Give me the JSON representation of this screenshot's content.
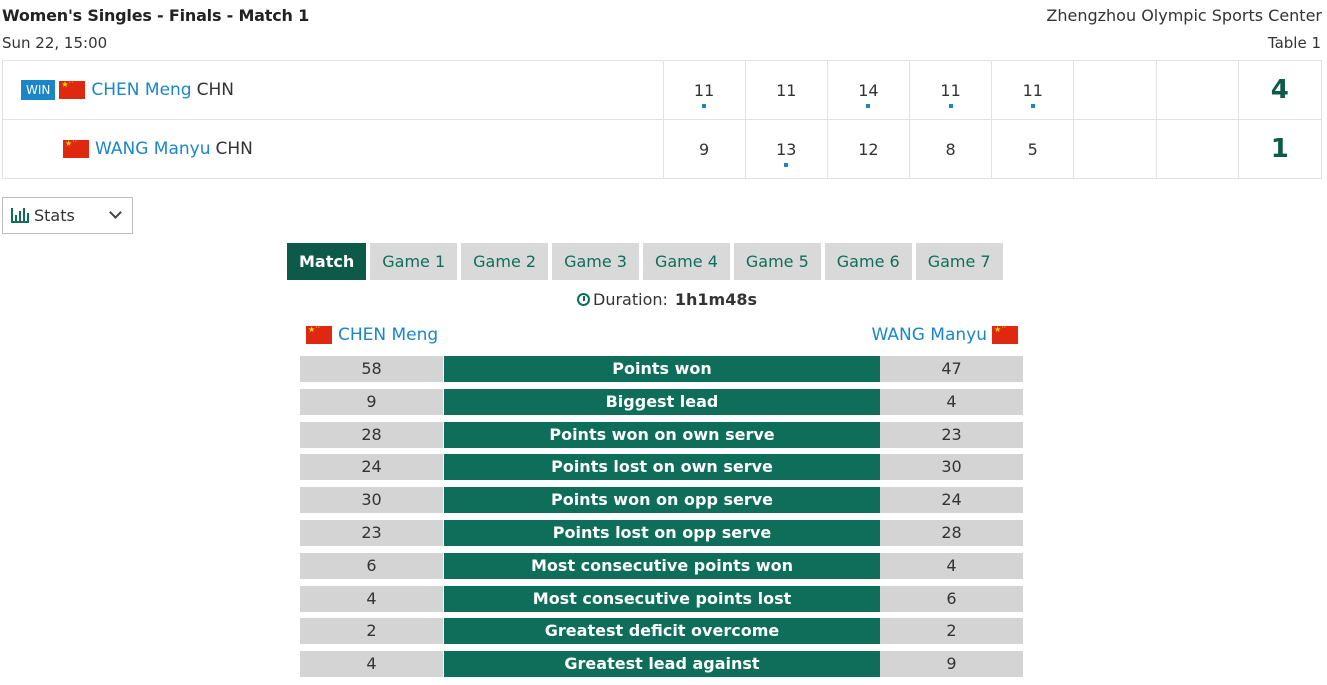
{
  "match": {
    "title": "Women's Singles - Finals - Match 1",
    "datetime": "Sun 22, 15:00",
    "venue": "Zhengzhou Olympic Sports Center",
    "table": "Table 1"
  },
  "players": [
    {
      "badge": "WIN",
      "flag": "china-flag-icon",
      "name": "CHEN Meng",
      "country": "CHN",
      "games": [
        "11",
        "11",
        "14",
        "11",
        "11",
        "",
        ""
      ],
      "game_won": [
        true,
        false,
        true,
        true,
        true,
        false,
        false
      ],
      "total": "4"
    },
    {
      "badge": "",
      "flag": "china-flag-icon",
      "name": "WANG Manyu",
      "country": "CHN",
      "games": [
        "9",
        "13",
        "12",
        "8",
        "5",
        "",
        ""
      ],
      "game_won": [
        false,
        true,
        false,
        false,
        false,
        false,
        false
      ],
      "total": "1"
    }
  ],
  "stats_dropdown": {
    "icon": "bar-chart-icon",
    "label": "Stats"
  },
  "tabs": [
    {
      "label": "Match",
      "active": true
    },
    {
      "label": "Game 1",
      "active": false
    },
    {
      "label": "Game 2",
      "active": false
    },
    {
      "label": "Game 3",
      "active": false
    },
    {
      "label": "Game 4",
      "active": false
    },
    {
      "label": "Game 5",
      "active": false
    },
    {
      "label": "Game 6",
      "active": false
    },
    {
      "label": "Game 7",
      "active": false
    }
  ],
  "duration": {
    "label": "Duration:",
    "value": "1h1m48s"
  },
  "stats_header": {
    "left_player": "CHEN Meng",
    "right_player": "WANG Manyu"
  },
  "stats": [
    {
      "left": "58",
      "label": "Points won",
      "right": "47"
    },
    {
      "left": "9",
      "label": "Biggest lead",
      "right": "4"
    },
    {
      "left": "28",
      "label": "Points won on own serve",
      "right": "23"
    },
    {
      "left": "24",
      "label": "Points lost on own serve",
      "right": "30"
    },
    {
      "left": "30",
      "label": "Points won on opp serve",
      "right": "24"
    },
    {
      "left": "23",
      "label": "Points lost on opp serve",
      "right": "28"
    },
    {
      "left": "6",
      "label": "Most consecutive points won",
      "right": "4"
    },
    {
      "left": "4",
      "label": "Most consecutive points lost",
      "right": "6"
    },
    {
      "left": "2",
      "label": "Greatest deficit overcome",
      "right": "2"
    },
    {
      "left": "4",
      "label": "Greatest lead against",
      "right": "9"
    }
  ],
  "colors": {
    "accent_green": "#0e6e5a",
    "dark_green": "#0e5a48",
    "link_blue": "#1a86c8",
    "flag_red": "#de2910"
  }
}
